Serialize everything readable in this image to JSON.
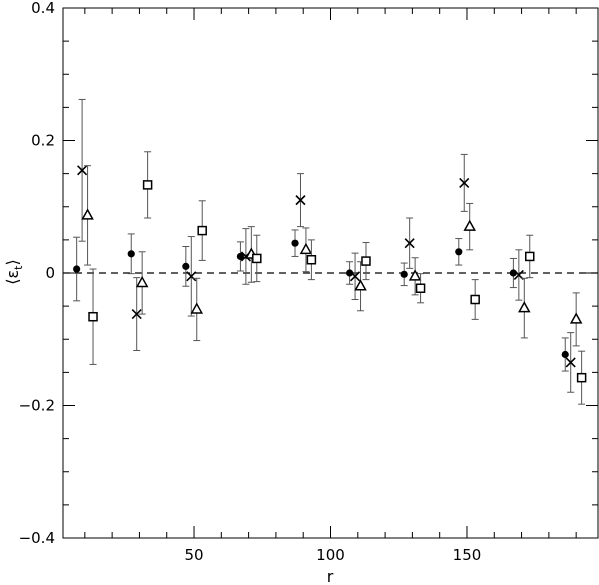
{
  "chart_data": {
    "type": "scatter",
    "title": "",
    "xlabel": "r",
    "ylabel": "⟨ε",
    "ylabel_subscript": "t",
    "ylabel_close": "⟩",
    "xlim": [
      2,
      198
    ],
    "ylim": [
      -0.4,
      0.4
    ],
    "x_ticks": [
      50,
      100,
      150
    ],
    "x_tick_labels": [
      "50",
      "100",
      "150"
    ],
    "y_ticks": [
      -0.4,
      -0.2,
      0,
      0.2,
      0.4
    ],
    "y_tick_labels": [
      "−0.4",
      "−0.2",
      "0",
      "0.2",
      "0.4"
    ],
    "reference_line": {
      "y": 0,
      "style": "dashed"
    },
    "grid": false,
    "series": [
      {
        "marker": "filled-circle",
        "points": [
          {
            "x": 7,
            "y": 0.006,
            "err": 0.048
          },
          {
            "x": 27,
            "y": 0.029,
            "err": 0.03
          },
          {
            "x": 47,
            "y": 0.01,
            "err": 0.03
          },
          {
            "x": 67,
            "y": 0.025,
            "err": 0.022
          },
          {
            "x": 87,
            "y": 0.045,
            "err": 0.02
          },
          {
            "x": 107,
            "y": 0.0,
            "err": 0.017
          },
          {
            "x": 127,
            "y": -0.002,
            "err": 0.017
          },
          {
            "x": 147,
            "y": 0.032,
            "err": 0.02
          },
          {
            "x": 167,
            "y": 0.0,
            "err": 0.022
          },
          {
            "x": 186,
            "y": -0.123,
            "err": 0.025
          }
        ]
      },
      {
        "marker": "cross",
        "points": [
          {
            "x": 9,
            "y": 0.155,
            "err": 0.107
          },
          {
            "x": 29,
            "y": -0.062,
            "err": 0.055
          },
          {
            "x": 49,
            "y": -0.005,
            "err": 0.06
          },
          {
            "x": 69,
            "y": 0.025,
            "err": 0.042
          },
          {
            "x": 89,
            "y": 0.11,
            "err": 0.04
          },
          {
            "x": 109,
            "y": -0.005,
            "err": 0.035
          },
          {
            "x": 129,
            "y": 0.045,
            "err": 0.038
          },
          {
            "x": 149,
            "y": 0.136,
            "err": 0.043
          },
          {
            "x": 169,
            "y": -0.003,
            "err": 0.038
          },
          {
            "x": 188,
            "y": -0.135,
            "err": 0.045
          }
        ]
      },
      {
        "marker": "open-triangle",
        "points": [
          {
            "x": 11,
            "y": 0.087,
            "err": 0.075
          },
          {
            "x": 31,
            "y": -0.015,
            "err": 0.047
          },
          {
            "x": 51,
            "y": -0.055,
            "err": 0.047
          },
          {
            "x": 71,
            "y": 0.028,
            "err": 0.042
          },
          {
            "x": 91,
            "y": 0.035,
            "err": 0.033
          },
          {
            "x": 111,
            "y": -0.02,
            "err": 0.037
          },
          {
            "x": 131,
            "y": -0.005,
            "err": 0.028
          },
          {
            "x": 151,
            "y": 0.07,
            "err": 0.035
          },
          {
            "x": 171,
            "y": -0.053,
            "err": 0.045
          },
          {
            "x": 190,
            "y": -0.07,
            "err": 0.04
          }
        ]
      },
      {
        "marker": "open-square",
        "points": [
          {
            "x": 13,
            "y": -0.066,
            "err": 0.072
          },
          {
            "x": 33,
            "y": 0.133,
            "err": 0.05
          },
          {
            "x": 53,
            "y": 0.064,
            "err": 0.045
          },
          {
            "x": 73,
            "y": 0.022,
            "err": 0.035
          },
          {
            "x": 93,
            "y": 0.02,
            "err": 0.03
          },
          {
            "x": 113,
            "y": 0.018,
            "err": 0.028
          },
          {
            "x": 133,
            "y": -0.023,
            "err": 0.022
          },
          {
            "x": 153,
            "y": -0.04,
            "err": 0.03
          },
          {
            "x": 173,
            "y": 0.025,
            "err": 0.032
          },
          {
            "x": 192,
            "y": -0.158,
            "err": 0.04
          }
        ]
      }
    ]
  }
}
